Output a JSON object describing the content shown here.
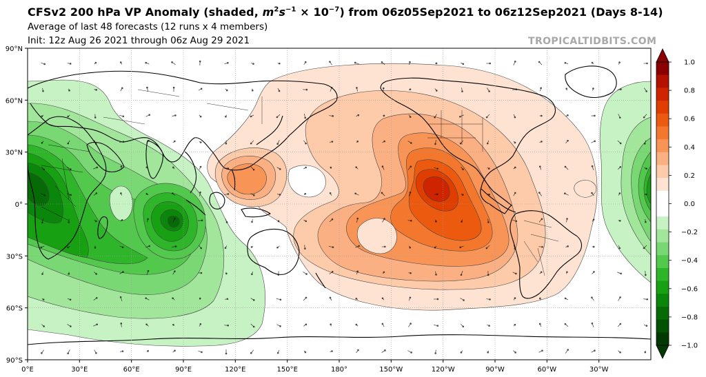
{
  "header": {
    "title_pre": "CFSv2 200 hPa VP Anomaly (shaded, ",
    "title_units_base": "m",
    "title_units_sup1": "2",
    "title_units_mid": "s",
    "title_units_sup2": "−1",
    "title_units_times": " × 10",
    "title_units_sup3": "−7",
    "title_post": ") from 06z05Sep2021 to 06z12Sep2021 (Days 8-14)",
    "subtitle_1": "Average of last 48 forecasts (12 runs x 4 members)",
    "subtitle_2": "Init: 12z Aug 26 2021 through 06z Aug 29 2021",
    "brand": "TROPICALTIDBITS.COM"
  },
  "axes": {
    "lat_labels": [
      "90°N",
      "60°N",
      "30°N",
      "0°",
      "30°S",
      "60°S",
      "90°S"
    ],
    "lon_labels": [
      "0°E",
      "30°E",
      "60°E",
      "90°E",
      "120°E",
      "150°E",
      "180°",
      "150°W",
      "120°W",
      "90°W",
      "60°W",
      "30°W"
    ]
  },
  "colorbar": {
    "tick_labels": [
      "1.0",
      "0.8",
      "0.6",
      "0.4",
      "0.2",
      "0.0",
      "−0.2",
      "−0.4",
      "−0.6",
      "−0.8",
      "−1.0"
    ],
    "colors_top_to_bottom": [
      "#8b0000",
      "#b31200",
      "#cf2400",
      "#e03d00",
      "#ec5a10",
      "#f4772e",
      "#f89456",
      "#fbb083",
      "#fdcaaa",
      "#fee3d3",
      "#ffffff",
      "#ffffff",
      "#c7f2c4",
      "#a2e69c",
      "#7ad874",
      "#52c84c",
      "#2fb52a",
      "#16a012",
      "#0a860a",
      "#066b06",
      "#035203",
      "#013a01"
    ]
  },
  "colors": {
    "positive_strong": "#cf2400",
    "positive_mid": "#ec5a10",
    "positive_light": "#fbb083",
    "positive_faint": "#fee3d3",
    "negative_strong": "#066b06",
    "negative_mid": "#2fb52a",
    "negative_light": "#a2e69c",
    "negative_faint": "#c7f2c4",
    "watermark": "#a8a8a8"
  }
}
